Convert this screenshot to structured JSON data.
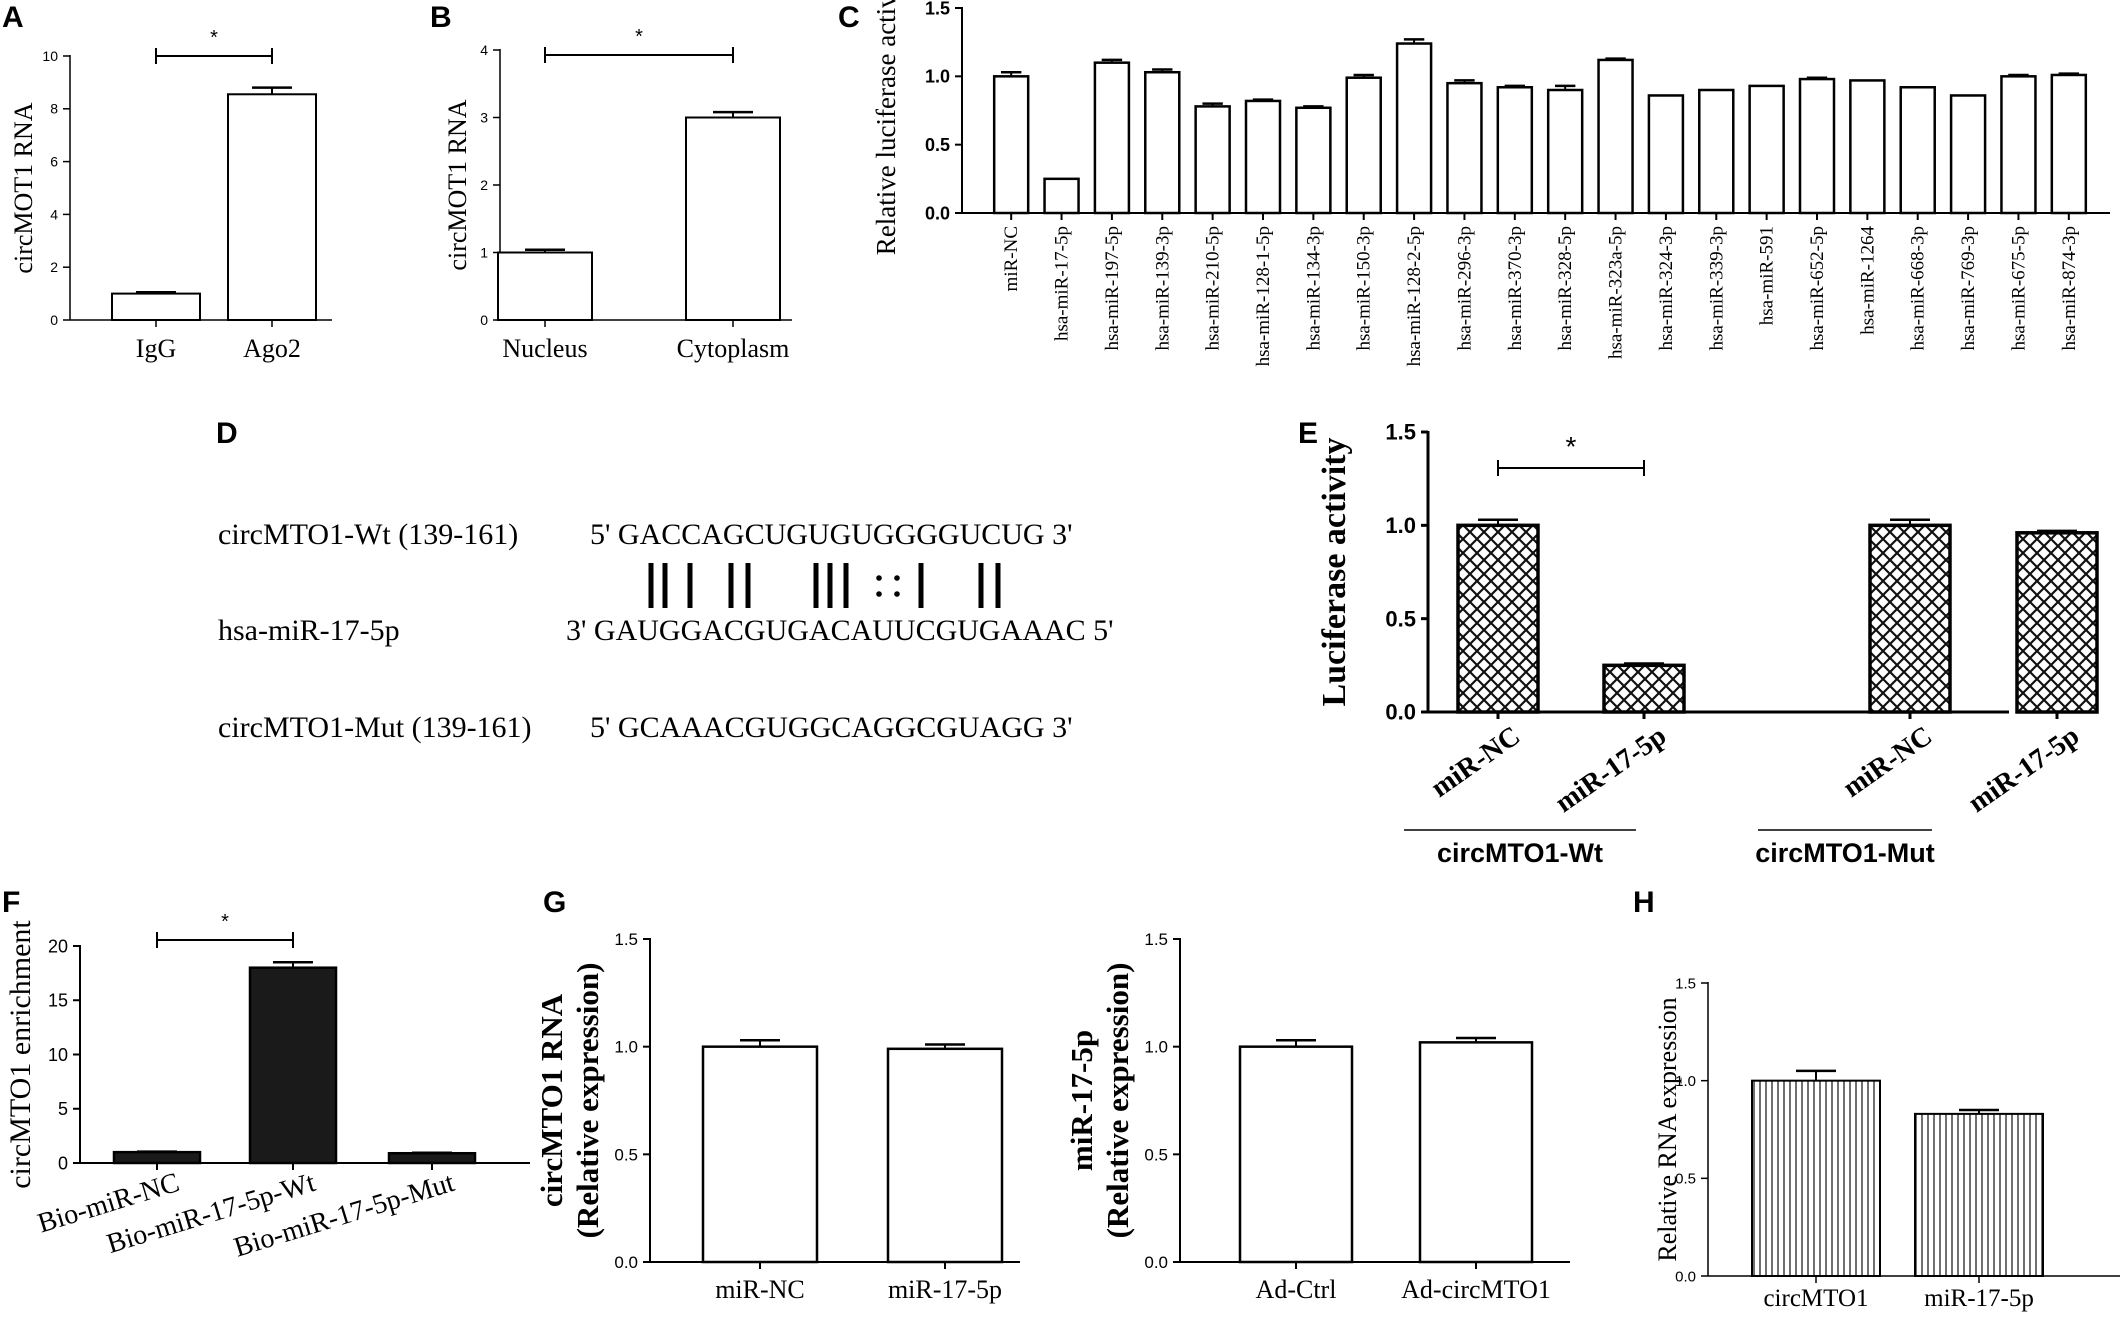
{
  "panels": {
    "A": "A",
    "B": "B",
    "C": "C",
    "D": "D",
    "E": "E",
    "F": "F",
    "G": "G",
    "H": "H"
  },
  "sequences": {
    "wt_label": "circMTO1-Wt (139-161)",
    "wt_seq": "5' GACCAGCUGUGUGGGGUCUG 3'",
    "mir_label": "hsa-miR-17-5p",
    "mir_seq": "3' GAUGGACGUGACAUUCGUGAAAC 5'",
    "mut_label": "circMTO1-Mut (139-161)",
    "mut_seq": "5' GCAAACGUGGCAGGCGUAGG 3'",
    "pairing_marks": "||| ||  |||:: |  ||"
  },
  "chart_data": [
    {
      "panel": "A",
      "type": "bar",
      "categories": [
        "IgG",
        "Ago2"
      ],
      "values": [
        1.0,
        8.55
      ],
      "errors": [
        0.05,
        0.25
      ],
      "ylabel": "circMOT1 RNA",
      "ylim": [
        0,
        10
      ],
      "yticks": [
        "0",
        "2",
        "4",
        "6",
        "8",
        "10"
      ],
      "significance": "*",
      "fill": "#ffffff"
    },
    {
      "panel": "B",
      "type": "bar",
      "categories": [
        "Nucleus",
        "Cytoplasm"
      ],
      "values": [
        1.0,
        3.0
      ],
      "errors": [
        0.04,
        0.08
      ],
      "ylabel": "circMOT1 RNA",
      "ylim": [
        0,
        4
      ],
      "yticks": [
        "0",
        "1",
        "2",
        "3",
        "4"
      ],
      "significance": "*",
      "fill": "#ffffff"
    },
    {
      "panel": "C",
      "type": "bar",
      "categories": [
        "miR-NC",
        "hsa-miR-17-5p",
        "hsa-miR-197-5p",
        "hsa-miR-139-3p",
        "hsa-miR-210-5p",
        "hsa-miR-128-1-5p",
        "hsa-miR-134-3p",
        "hsa-miR-150-3p",
        "hsa-miR-128-2-5p",
        "hsa-miR-296-3p",
        "hsa-miR-370-3p",
        "hsa-miR-328-5p",
        "hsa-miR-323a-5p",
        "hsa-miR-324-3p",
        "hsa-miR-339-3p",
        "hsa-miR-591",
        "hsa-miR-652-5p",
        "hsa-miR-1264",
        "hsa-miR-668-3p",
        "hsa-miR-769-3p",
        "hsa-miR-675-5p",
        "hsa-miR-874-3p"
      ],
      "values": [
        1.0,
        0.25,
        1.1,
        1.03,
        0.78,
        0.82,
        0.77,
        0.99,
        1.24,
        0.95,
        0.92,
        0.9,
        1.12,
        0.86,
        0.9,
        0.93,
        0.98,
        0.97,
        0.92,
        0.86,
        1.0,
        1.01
      ],
      "errors": [
        0.03,
        0.0,
        0.02,
        0.02,
        0.02,
        0.01,
        0.01,
        0.02,
        0.03,
        0.02,
        0.01,
        0.03,
        0.01,
        0.0,
        0.0,
        0.0,
        0.01,
        0.0,
        0.0,
        0.0,
        0.01,
        0.01
      ],
      "ylabel": "Relative luciferase activity",
      "ylim": [
        0,
        1.5
      ],
      "yticks": [
        "0.0",
        "0.5",
        "1.0",
        "1.5"
      ],
      "fill": "#ffffff"
    },
    {
      "panel": "E",
      "type": "bar",
      "categories": [
        "miR-NC",
        "miR-17-5p",
        "miR-NC",
        "miR-17-5p"
      ],
      "groups": [
        "circMTO1-Wt",
        "circMTO1-Wt",
        "circMTO1-Mut",
        "circMTO1-Mut"
      ],
      "group_labels": [
        "circMTO1-Wt",
        "circMTO1-Mut"
      ],
      "values": [
        1.0,
        0.25,
        1.0,
        0.96
      ],
      "errors": [
        0.03,
        0.01,
        0.03,
        0.01
      ],
      "ylabel": "Luciferase activity",
      "ylim": [
        0,
        1.5
      ],
      "yticks": [
        "0.0",
        "0.5",
        "1.0",
        "1.5"
      ],
      "significance": "*",
      "fill": "crosshatch"
    },
    {
      "panel": "F",
      "type": "bar",
      "categories": [
        "Bio-miR-NC",
        "Bio-miR-17-5p-Wt",
        "Bio-miR-17-5p-Mut"
      ],
      "values": [
        1.0,
        18.0,
        0.9
      ],
      "errors": [
        0.05,
        0.5,
        0.05
      ],
      "ylabel": "circMTO1 enrichment",
      "ylim": [
        0,
        20
      ],
      "yticks": [
        "0",
        "5",
        "10",
        "15",
        "20"
      ],
      "significance": "*",
      "fill": "#1a1a1a"
    },
    {
      "panel": "G1",
      "type": "bar",
      "categories": [
        "miR-NC",
        "miR-17-5p"
      ],
      "values": [
        1.0,
        0.99
      ],
      "errors": [
        0.03,
        0.02
      ],
      "ylabel": [
        "circMTO1 RNA",
        "(Relative expression)"
      ],
      "ylim": [
        0,
        1.5
      ],
      "yticks": [
        "0.0",
        "0.5",
        "1.0",
        "1.5"
      ],
      "fill": "#ffffff"
    },
    {
      "panel": "G2",
      "type": "bar",
      "categories": [
        "Ad-Ctrl",
        "Ad-circMTO1"
      ],
      "values": [
        1.0,
        1.02
      ],
      "errors": [
        0.03,
        0.02
      ],
      "ylabel": [
        "miR-17-5p",
        "(Relative expression)"
      ],
      "ylim": [
        0,
        1.5
      ],
      "yticks": [
        "0.0",
        "0.5",
        "1.0",
        "1.5"
      ],
      "fill": "#ffffff"
    },
    {
      "panel": "H",
      "type": "bar",
      "categories": [
        "circMTO1",
        "miR-17-5p"
      ],
      "values": [
        1.0,
        0.83
      ],
      "errors": [
        0.05,
        0.02
      ],
      "ylabel": "Relative RNA expression",
      "ylim": [
        0,
        1.5
      ],
      "yticks": [
        "0.0",
        "0.5",
        "1.0",
        "1.5"
      ],
      "fill": "vertical-stripes"
    }
  ]
}
